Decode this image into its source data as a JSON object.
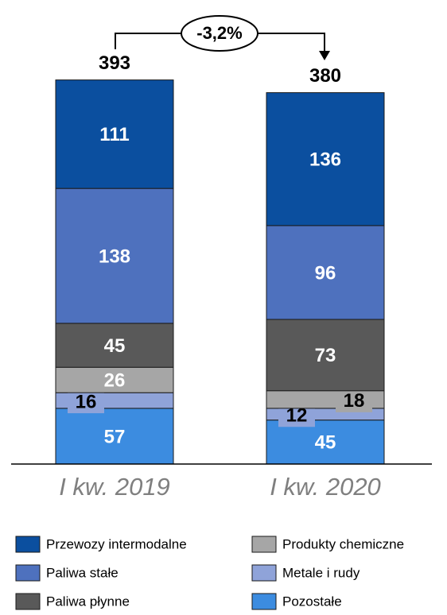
{
  "chart_data": {
    "type": "stacked_bar",
    "categories": [
      "I kw. 2019",
      "I kw. 2020"
    ],
    "series": [
      {
        "name": "Pozostałe",
        "color": "#3c8ce0",
        "values": [
          57,
          45
        ]
      },
      {
        "name": "Metale i rudy",
        "color": "#8fa3d9",
        "values": [
          16,
          12
        ]
      },
      {
        "name": "Produkty chemiczne",
        "color": "#a6a6a6",
        "values": [
          26,
          18
        ]
      },
      {
        "name": "Paliwa płynne",
        "color": "#595959",
        "values": [
          45,
          73
        ]
      },
      {
        "name": "Paliwa stałe",
        "color": "#4e71be",
        "values": [
          138,
          96
        ]
      },
      {
        "name": "Przewozy intermodalne",
        "color": "#0b4f9f",
        "values": [
          111,
          136
        ]
      }
    ],
    "totals": [
      393,
      380
    ],
    "annotation": "-3,2%",
    "ylim": [
      0,
      400
    ],
    "legend_order": [
      5,
      2,
      4,
      1,
      3,
      0
    ]
  }
}
